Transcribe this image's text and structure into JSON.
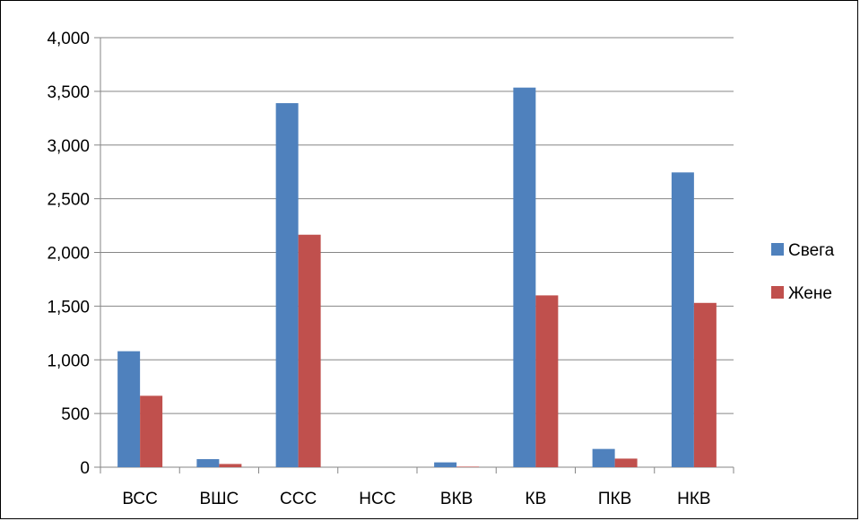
{
  "chart_data": {
    "type": "bar",
    "categories": [
      "ВСС",
      "ВШС",
      "ССС",
      "НСС",
      "ВКВ",
      "КВ",
      "ПКВ",
      "НКВ"
    ],
    "series": [
      {
        "name": "Свега",
        "color": "#4f81bd",
        "values": [
          1080,
          75,
          3390,
          0,
          45,
          3535,
          170,
          2745
        ]
      },
      {
        "name": "Жене",
        "color": "#c0504d",
        "values": [
          665,
          30,
          2165,
          0,
          5,
          1600,
          80,
          1530
        ]
      }
    ],
    "y_ticks": [
      "0",
      "500",
      "1,000",
      "1,500",
      "2,000",
      "2,500",
      "3,000",
      "3,500",
      "4,000"
    ],
    "ylim": [
      0,
      4000
    ],
    "grid": true,
    "legend_position": "right"
  }
}
